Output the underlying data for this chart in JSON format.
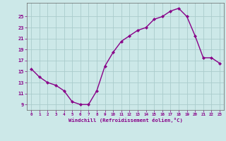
{
  "x": [
    0,
    1,
    2,
    3,
    4,
    5,
    6,
    7,
    8,
    9,
    10,
    11,
    12,
    13,
    14,
    15,
    16,
    17,
    18,
    19,
    20,
    21,
    22,
    23
  ],
  "y": [
    15.5,
    14.0,
    13.0,
    12.5,
    11.5,
    9.5,
    9.0,
    9.0,
    11.5,
    16.0,
    18.5,
    20.5,
    21.5,
    22.5,
    23.0,
    24.5,
    25.0,
    26.0,
    26.5,
    25.0,
    21.5,
    17.5,
    17.5,
    16.5
  ],
  "xlabel": "Windchill (Refroidissement éolien,°C)",
  "xlim": [
    -0.5,
    23.5
  ],
  "ylim": [
    8.0,
    27.5
  ],
  "yticks": [
    9,
    11,
    13,
    15,
    17,
    19,
    21,
    23,
    25
  ],
  "xticks": [
    0,
    1,
    2,
    3,
    4,
    5,
    6,
    7,
    8,
    9,
    10,
    11,
    12,
    13,
    14,
    15,
    16,
    17,
    18,
    19,
    20,
    21,
    22,
    23
  ],
  "line_color": "#880088",
  "marker_color": "#880088",
  "bg_color": "#cce8e8",
  "grid_color": "#aacccc",
  "tick_color": "#880088",
  "label_color": "#880088",
  "marker": "D",
  "markersize": 2.2,
  "linewidth": 1.0
}
